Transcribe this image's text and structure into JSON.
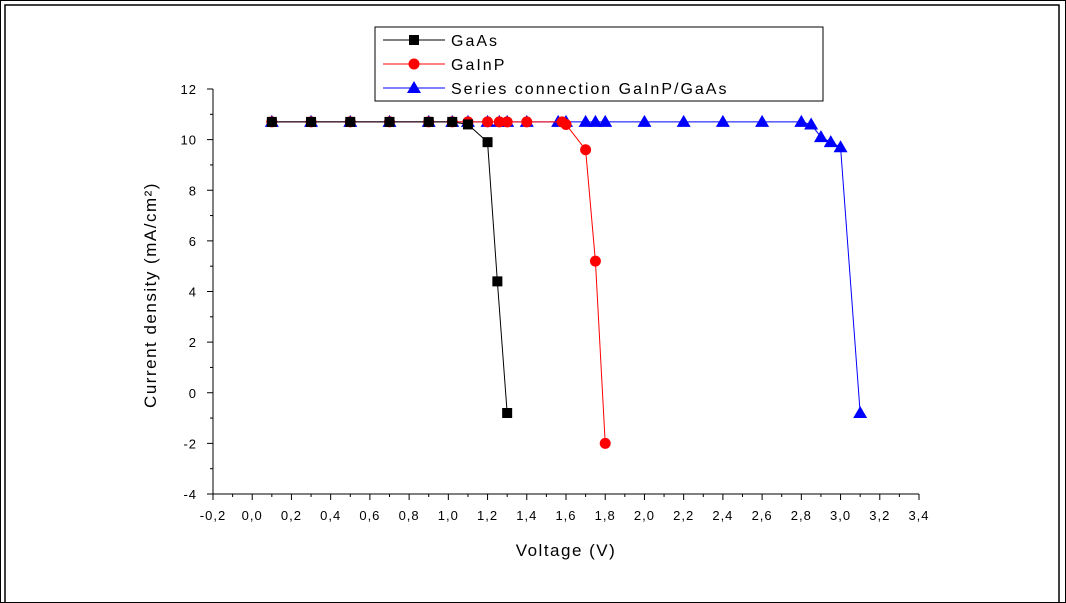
{
  "chart_data": {
    "type": "line",
    "title": "",
    "xlabel": "Voltage (V)",
    "ylabel": "Current density (mA/cm²)",
    "xlim": [
      -0.2,
      3.4
    ],
    "ylim": [
      -4,
      12
    ],
    "x_ticks": [
      -0.2,
      0.0,
      0.2,
      0.4,
      0.6,
      0.8,
      1.0,
      1.2,
      1.4,
      1.6,
      1.8,
      2.0,
      2.2,
      2.4,
      2.6,
      2.8,
      3.0,
      3.2,
      3.4
    ],
    "x_tick_labels": [
      "-0,2",
      "0,0",
      "0,2",
      "0,4",
      "0,6",
      "0,8",
      "1,0",
      "1,2",
      "1,4",
      "1,6",
      "1,8",
      "2,0",
      "2,2",
      "2,4",
      "2,6",
      "2,8",
      "3,0",
      "3,2",
      "3,4"
    ],
    "y_ticks": [
      -4,
      -2,
      0,
      2,
      4,
      6,
      8,
      10,
      12
    ],
    "y_tick_labels": [
      "-4",
      "-2",
      "0",
      "2",
      "4",
      "6",
      "8",
      "10",
      "12"
    ],
    "grid": false,
    "legend_position": "top-center",
    "series": [
      {
        "name": "GaAs",
        "color": "#000000",
        "marker": "square",
        "x": [
          0.1,
          0.3,
          0.5,
          0.7,
          0.9,
          1.02,
          1.1,
          1.2,
          1.25,
          1.3
        ],
        "y": [
          10.7,
          10.7,
          10.7,
          10.7,
          10.7,
          10.7,
          10.6,
          9.9,
          4.4,
          -0.8
        ]
      },
      {
        "name": "GaInP",
        "color": "#ff0000",
        "marker": "circle",
        "x": [
          0.1,
          0.3,
          0.5,
          0.7,
          0.9,
          1.02,
          1.1,
          1.2,
          1.26,
          1.3,
          1.4,
          1.58,
          1.6,
          1.7,
          1.75,
          1.8
        ],
        "y": [
          10.7,
          10.7,
          10.7,
          10.7,
          10.7,
          10.7,
          10.7,
          10.7,
          10.7,
          10.7,
          10.7,
          10.7,
          10.6,
          9.6,
          5.2,
          -2.0
        ]
      },
      {
        "name": "Series connection GaInP/GaAs",
        "color": "#0000ff",
        "marker": "triangle",
        "x": [
          0.1,
          0.3,
          0.5,
          0.7,
          0.9,
          1.02,
          1.1,
          1.2,
          1.26,
          1.3,
          1.4,
          1.56,
          1.6,
          1.7,
          1.75,
          1.8,
          2.0,
          2.2,
          2.4,
          2.6,
          2.8,
          2.85,
          2.9,
          2.95,
          3.0,
          3.1
        ],
        "y": [
          10.7,
          10.7,
          10.7,
          10.7,
          10.7,
          10.7,
          10.7,
          10.7,
          10.7,
          10.7,
          10.7,
          10.7,
          10.7,
          10.7,
          10.7,
          10.7,
          10.7,
          10.7,
          10.7,
          10.7,
          10.7,
          10.6,
          10.1,
          9.9,
          9.7,
          -0.8
        ]
      }
    ]
  }
}
